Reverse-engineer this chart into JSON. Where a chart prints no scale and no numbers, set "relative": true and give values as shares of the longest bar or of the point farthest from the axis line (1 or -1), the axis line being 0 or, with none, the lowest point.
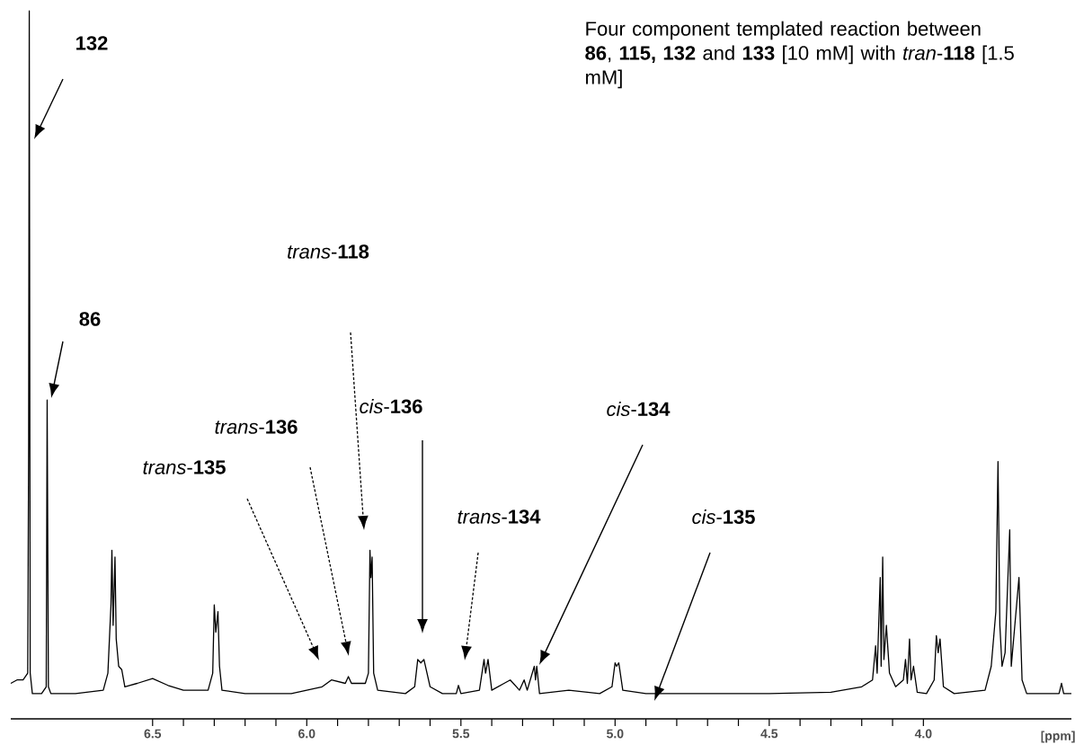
{
  "chart_data": {
    "type": "line",
    "relative": true,
    "title": "Four component templated reaction between **86**, **115, 132** and **133** [10 mM] with *tran*-**118** [1.5 mM]",
    "xlabel": "[ppm]",
    "xlim": [
      6.96,
      3.52
    ],
    "xticks": [
      {
        "value": 6.5,
        "label": "6.5"
      },
      {
        "value": 6,
        "label": "6.0"
      },
      {
        "value": 5.5,
        "label": "5.5"
      },
      {
        "value": 5,
        "label": "5.0"
      },
      {
        "value": 4.5,
        "label": "4.5"
      },
      {
        "value": 4,
        "label": "4.0"
      }
    ],
    "series": [
      {
        "color": "#000000",
        "x": [
          6.96,
          6.94,
          6.92,
          6.905,
          6.902,
          6.9,
          6.897,
          6.89,
          6.86,
          6.845,
          6.842,
          6.838,
          6.83,
          6.75,
          6.66,
          6.645,
          6.635,
          6.632,
          6.628,
          6.622,
          6.618,
          6.61,
          6.6,
          6.59,
          6.55,
          6.5,
          6.45,
          6.4,
          6.32,
          6.305,
          6.3,
          6.295,
          6.288,
          6.283,
          6.275,
          6.2,
          6.05,
          5.95,
          5.92,
          5.875,
          5.865,
          5.855,
          5.81,
          5.8,
          5.795,
          5.792,
          5.788,
          5.783,
          5.77,
          5.68,
          5.65,
          5.64,
          5.63,
          5.62,
          5.6,
          5.56,
          5.515,
          5.508,
          5.5,
          5.44,
          5.425,
          5.42,
          5.412,
          5.4,
          5.36,
          5.34,
          5.31,
          5.295,
          5.285,
          5.262,
          5.258,
          5.254,
          5.245,
          5.15,
          5.05,
          5.01,
          5.0,
          4.995,
          4.988,
          4.975,
          4.9,
          4.5,
          4.3,
          4.2,
          4.165,
          4.155,
          4.15,
          4.14,
          4.137,
          4.132,
          4.128,
          4.12,
          4.11,
          4.09,
          4.065,
          4.058,
          4.052,
          4.045,
          4.04,
          4.032,
          4.02,
          3.99,
          3.965,
          3.958,
          3.952,
          3.946,
          3.935,
          3.9,
          3.8,
          3.78,
          3.765,
          3.758,
          3.752,
          3.745,
          3.735,
          3.72,
          3.715,
          3.69,
          3.68,
          3.665,
          3.56,
          3.552,
          3.545,
          3.52
        ],
        "values": [
          0.015,
          0.02,
          0.02,
          0.03,
          0.37,
          1.0,
          0.03,
          0.0,
          0.0,
          0.01,
          0.43,
          0.01,
          0.0,
          0.0,
          0.005,
          0.03,
          0.13,
          0.21,
          0.1,
          0.2,
          0.08,
          0.04,
          0.035,
          0.01,
          0.015,
          0.022,
          0.012,
          0.005,
          0.005,
          0.03,
          0.13,
          0.09,
          0.12,
          0.04,
          0.005,
          0.0,
          0.0,
          0.01,
          0.02,
          0.015,
          0.025,
          0.015,
          0.015,
          0.03,
          0.21,
          0.17,
          0.2,
          0.03,
          0.005,
          0.0,
          0.01,
          0.05,
          0.045,
          0.05,
          0.01,
          0.0,
          0.0,
          0.012,
          0.0,
          0.005,
          0.05,
          0.03,
          0.05,
          0.005,
          0.015,
          0.02,
          0.005,
          0.02,
          0.005,
          0.04,
          0.02,
          0.04,
          0.0,
          0.005,
          0.0,
          0.01,
          0.045,
          0.04,
          0.045,
          0.005,
          0.0,
          0.0,
          0.002,
          0.01,
          0.02,
          0.07,
          0.03,
          0.17,
          0.04,
          0.2,
          0.05,
          0.1,
          0.03,
          0.01,
          0.02,
          0.05,
          0.015,
          0.08,
          0.02,
          0.04,
          0.002,
          0.0,
          0.02,
          0.085,
          0.06,
          0.08,
          0.01,
          0.0,
          0.005,
          0.04,
          0.12,
          0.34,
          0.1,
          0.04,
          0.06,
          0.24,
          0.04,
          0.17,
          0.02,
          0.0,
          0.0,
          0.015,
          0.0,
          0.0
        ]
      }
    ],
    "annotations": [
      "**132**",
      "**86**",
      "*trans*-**118**",
      "*trans*-**136**",
      "*trans*-**135**",
      "*cis*-**136**",
      "*trans*-**134**",
      "*cis*-**134**",
      "*cis*-**135**"
    ]
  }
}
